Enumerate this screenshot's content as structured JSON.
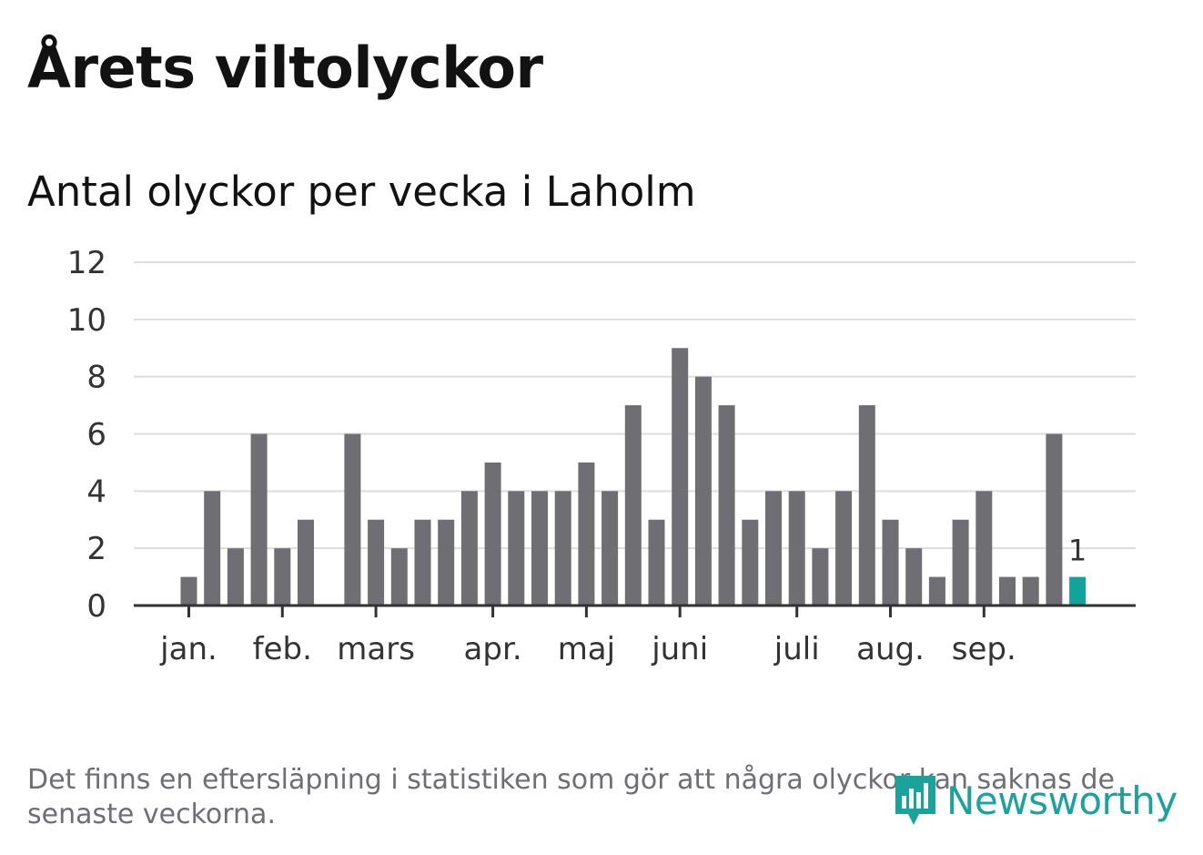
{
  "title": "Årets viltolyckor",
  "subtitle": "Antal olyckor per vecka i Laholm",
  "footnote": "Det finns en eftersläpning i statistiken som gör att några olyckor kan saknas de senaste veckorna.",
  "logo_text": "Newsworthy",
  "colors": {
    "bar": "#6e6e73",
    "highlight": "#12a39a",
    "grid": "#dddddd",
    "axis": "#333333",
    "text": "#121212"
  },
  "chart_data": {
    "type": "bar",
    "title": "Antal olyckor per vecka i Laholm",
    "xlabel": "",
    "ylabel": "",
    "ylim": [
      0,
      12
    ],
    "yticks": [
      0,
      2,
      4,
      6,
      8,
      10,
      12
    ],
    "month_labels": [
      {
        "label": "jan.",
        "week": 1
      },
      {
        "label": "feb.",
        "week": 5
      },
      {
        "label": "mars",
        "week": 9
      },
      {
        "label": "apr.",
        "week": 14
      },
      {
        "label": "maj",
        "week": 18
      },
      {
        "label": "juni",
        "week": 22
      },
      {
        "label": "juli",
        "week": 27
      },
      {
        "label": "aug.",
        "week": 31
      },
      {
        "label": "sep.",
        "week": 35
      }
    ],
    "weeks": [
      1,
      2,
      3,
      4,
      5,
      6,
      7,
      8,
      9,
      10,
      11,
      12,
      13,
      14,
      15,
      16,
      17,
      18,
      19,
      20,
      21,
      22,
      23,
      24,
      25,
      26,
      27,
      28,
      29,
      30,
      31,
      32,
      33,
      34,
      35,
      36,
      37,
      38,
      39
    ],
    "values": [
      1,
      4,
      2,
      6,
      2,
      3,
      0,
      6,
      3,
      2,
      3,
      3,
      4,
      5,
      4,
      4,
      4,
      5,
      4,
      7,
      3,
      9,
      8,
      7,
      3,
      4,
      4,
      2,
      4,
      7,
      3,
      2,
      1,
      3,
      4,
      1,
      1,
      6,
      1
    ],
    "highlight_index": 38,
    "annotation": "1"
  }
}
